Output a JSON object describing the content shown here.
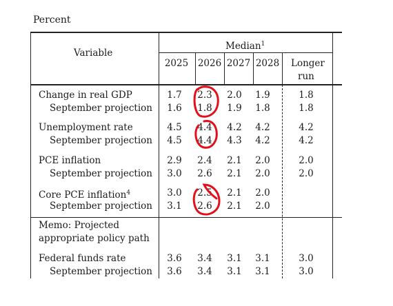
{
  "unit_label": "Percent",
  "header": {
    "variable": "Variable",
    "median": "Median",
    "median_sup": "1",
    "years": [
      "2025",
      "2026",
      "2027",
      "2028"
    ],
    "longer_run_line1": "Longer",
    "longer_run_line2": "run"
  },
  "rows": [
    {
      "label": "Change in real GDP",
      "values": [
        "1.7",
        "2.3",
        "2.0",
        "1.9",
        "1.8"
      ]
    },
    {
      "label": "September projection",
      "values": [
        "1.6",
        "1.8",
        "1.9",
        "1.8",
        "1.8"
      ]
    },
    {
      "label": "Unemployment rate",
      "values": [
        "4.5",
        "4.4",
        "4.2",
        "4.2",
        "4.2"
      ]
    },
    {
      "label": "September projection",
      "values": [
        "4.5",
        "4.4",
        "4.3",
        "4.2",
        "4.2"
      ]
    },
    {
      "label": "PCE inflation",
      "values": [
        "2.9",
        "2.4",
        "2.1",
        "2.0",
        "2.0"
      ]
    },
    {
      "label": "September projection",
      "values": [
        "3.0",
        "2.6",
        "2.1",
        "2.0",
        "2.0"
      ]
    },
    {
      "label": "Core PCE inflation",
      "sup": "4",
      "values": [
        "3.0",
        "2.5",
        "2.1",
        "2.0",
        ""
      ]
    },
    {
      "label": "September projection",
      "values": [
        "3.1",
        "2.6",
        "2.1",
        "2.0",
        ""
      ]
    },
    {
      "label": "Federal funds rate",
      "values": [
        "3.6",
        "3.4",
        "3.1",
        "3.1",
        "3.0"
      ]
    },
    {
      "label": "September projection",
      "values": [
        "3.6",
        "3.4",
        "3.1",
        "3.1",
        "3.0"
      ]
    }
  ],
  "memo": {
    "line1": "Memo: Projected",
    "line2": "appropriate policy path"
  },
  "annotation_color": "#e3101b"
}
